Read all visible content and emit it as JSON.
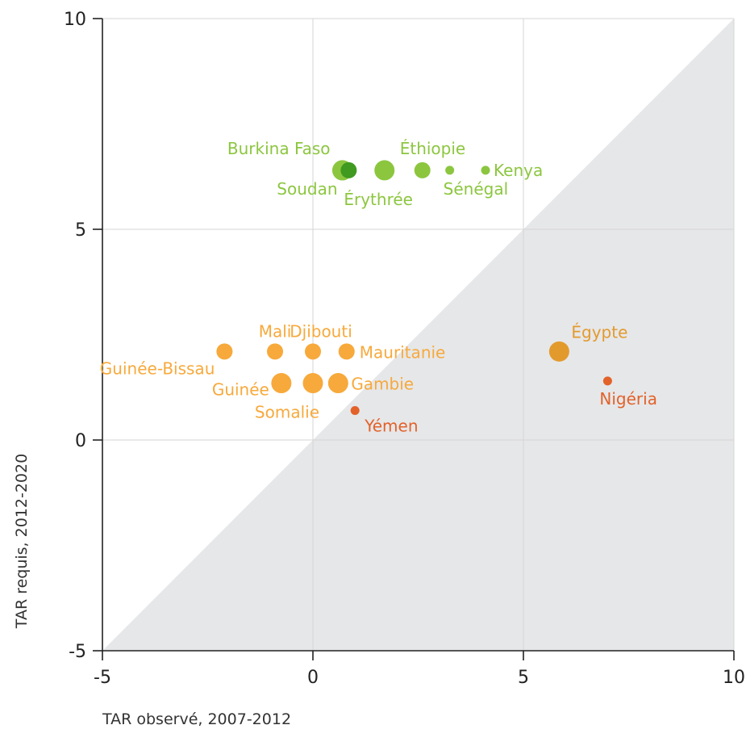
{
  "chart_data": {
    "type": "scatter",
    "title": "",
    "xlabel": "TAR observé, 2007-2012",
    "ylabel": "TAR requis, 2012-2020",
    "xlim": [
      -5,
      10
    ],
    "ylim": [
      -5,
      10
    ],
    "xticks": [
      "-5",
      "0",
      "5",
      "10"
    ],
    "yticks": [
      "-5",
      "0",
      "5",
      "10"
    ],
    "grid": true,
    "shaded_region": "below y = x (light grey)",
    "colors": {
      "green": "#8cc63f",
      "dark_green": "#3f9a1f",
      "orange": "#f7a93b",
      "dark_orange": "#e39a2d",
      "red_orange": "#e2622a",
      "shade": "#e6e7e9",
      "grid": "#d5d5d5"
    },
    "points": [
      {
        "label": "Burkina Faso",
        "x": 0.7,
        "y": 6.4,
        "size": "large",
        "color": "#8cc63f"
      },
      {
        "label": "Soudan",
        "x": 0.7,
        "y": 6.4,
        "size": "large",
        "color": "#8cc63f"
      },
      {
        "label": "Érythrée",
        "x": 0.85,
        "y": 6.4,
        "size": "medium",
        "color": "#3f9a1f"
      },
      {
        "label": "",
        "x": 1.7,
        "y": 6.4,
        "size": "large",
        "color": "#8cc63f"
      },
      {
        "label": "Éthiopie",
        "x": 2.6,
        "y": 6.4,
        "size": "medium",
        "color": "#8cc63f"
      },
      {
        "label": "Sénégal",
        "x": 3.25,
        "y": 6.4,
        "size": "small",
        "color": "#8cc63f"
      },
      {
        "label": "Kenya",
        "x": 4.1,
        "y": 6.4,
        "size": "small",
        "color": "#8cc63f"
      },
      {
        "label": "Guinée-Bissau",
        "x": -2.1,
        "y": 2.1,
        "size": "medium",
        "color": "#f7a93b"
      },
      {
        "label": "Mali",
        "x": -0.9,
        "y": 2.1,
        "size": "medium",
        "color": "#f7a93b"
      },
      {
        "label": "Djibouti",
        "x": 0.0,
        "y": 2.1,
        "size": "medium",
        "color": "#f7a93b"
      },
      {
        "label": "Mauritanie",
        "x": 0.8,
        "y": 2.1,
        "size": "medium",
        "color": "#f7a93b"
      },
      {
        "label": "Guinée",
        "x": -0.75,
        "y": 1.35,
        "size": "large",
        "color": "#f7a93b"
      },
      {
        "label": "Somalie",
        "x": 0.0,
        "y": 1.35,
        "size": "large",
        "color": "#f7a93b"
      },
      {
        "label": "Gambie",
        "x": 0.6,
        "y": 1.35,
        "size": "large",
        "color": "#f7a93b"
      },
      {
        "label": "Yémen",
        "x": 1.0,
        "y": 0.7,
        "size": "small",
        "color": "#e2622a"
      },
      {
        "label": "Égypte",
        "x": 5.85,
        "y": 2.1,
        "size": "large",
        "color": "#e39a2d"
      },
      {
        "label": "Nigéria",
        "x": 7.0,
        "y": 1.4,
        "size": "small",
        "color": "#e2622a"
      }
    ]
  }
}
